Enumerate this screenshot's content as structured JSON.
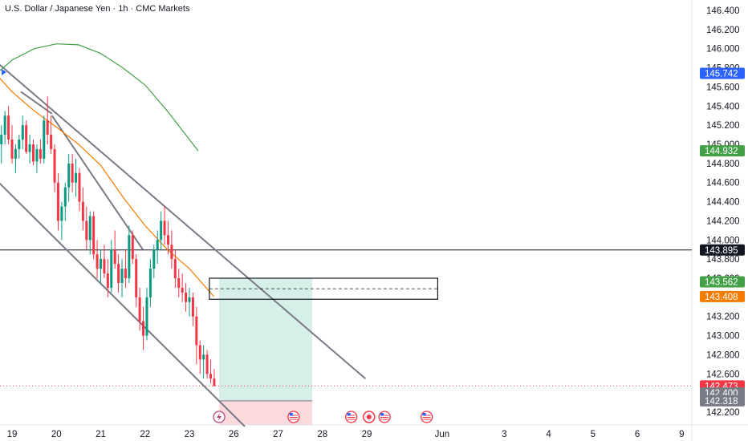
{
  "title": "U.S. Dollar / Japanese Yen · 1h · CMC Markets",
  "chart_data": {
    "type": "candlestick",
    "ylim": [
      142.09,
      146.47
    ],
    "y_ticks": [
      146.4,
      146.2,
      146.0,
      145.8,
      145.6,
      145.4,
      145.2,
      145.0,
      144.8,
      144.6,
      144.4,
      144.2,
      144.0,
      143.8,
      143.6,
      143.4,
      143.2,
      143.0,
      142.8,
      142.6,
      142.4,
      142.2
    ],
    "y_tick_labels": [
      "146.400",
      "146.200",
      "146.000",
      "145.800",
      "145.600",
      "145.400",
      "145.200",
      "145.000",
      "144.800",
      "144.600",
      "144.400",
      "144.200",
      "144.000",
      "143.800",
      "143.600",
      "143.400",
      "143.200",
      "143.000",
      "142.800",
      "142.600",
      "142.400",
      "142.200"
    ],
    "x_ticks": [
      {
        "label": "19",
        "x": 19
      },
      {
        "label": "20",
        "x": 20
      },
      {
        "label": "21",
        "x": 21
      },
      {
        "label": "22",
        "x": 22
      },
      {
        "label": "23",
        "x": 23
      },
      {
        "label": "26",
        "x": 24
      },
      {
        "label": "27",
        "x": 25
      },
      {
        "label": "28",
        "x": 26
      },
      {
        "label": "29",
        "x": 27
      },
      {
        "label": "Jun",
        "x": 28.7
      },
      {
        "label": "3",
        "x": 30.1
      },
      {
        "label": "4",
        "x": 31.1
      },
      {
        "label": "5",
        "x": 32.1
      },
      {
        "label": "6",
        "x": 33.1
      },
      {
        "label": "9",
        "x": 34.1
      }
    ],
    "xlim": [
      18.55,
      34.5
    ],
    "price_labels": [
      {
        "value": 145.742,
        "label": "145.742",
        "color": "#2962ff"
      },
      {
        "value": 144.932,
        "label": "144.932",
        "color": "#43a047"
      },
      {
        "value": 143.895,
        "label": "143.895",
        "color": "#131722"
      },
      {
        "value": 143.562,
        "label": "143.562",
        "color": "#43a047"
      },
      {
        "value": 143.408,
        "label": "143.408",
        "color": "#f57c00"
      },
      {
        "value": 142.473,
        "label": "142.473",
        "color": "#f23645"
      },
      {
        "value": 142.4,
        "label": "142.400",
        "color": "#787b86"
      },
      {
        "value": 142.318,
        "label": "142.318",
        "color": "#787b86"
      }
    ],
    "horizontal_line": {
      "value": 143.895,
      "color": "#131722"
    },
    "current_price_line": {
      "value": 142.473,
      "color": "#f23645"
    },
    "position": {
      "type": "long",
      "x_start": 23.67,
      "x_end": 25.77,
      "entry": 142.318,
      "target": 143.6,
      "stop": 142.09,
      "profit_color": "#d6efe9",
      "loss_color": "#fadadd"
    },
    "zone_box": {
      "x_start": 23.45,
      "x_end": 28.6,
      "top": 143.6,
      "bottom": 143.38,
      "mid": 143.49
    },
    "channel_lines": [
      {
        "points": [
          [
            18.55,
            145.9
          ],
          [
            26.97,
            142.55
          ]
        ],
        "color": "#787b86"
      },
      {
        "points": [
          [
            18.55,
            144.67
          ],
          [
            24.25,
            142.05
          ]
        ],
        "color": "#787b86"
      },
      {
        "points": [
          [
            19.2,
            145.55
          ],
          [
            19.9,
            145.32
          ]
        ],
        "color": "#787b86"
      },
      {
        "points": [
          [
            19.9,
            145.3
          ],
          [
            21.95,
            143.9
          ]
        ],
        "color": "#787b86"
      }
    ],
    "series": [
      {
        "name": "",
        "color": "#43a047",
        "points": [
          [
            18.55,
            145.7
          ],
          [
            19.0,
            145.88
          ],
          [
            19.5,
            146.0
          ],
          [
            20.0,
            146.05
          ],
          [
            20.5,
            146.04
          ],
          [
            21.0,
            145.95
          ],
          [
            21.5,
            145.8
          ],
          [
            22.0,
            145.62
          ],
          [
            22.5,
            145.35
          ],
          [
            23.2,
            144.93
          ]
        ]
      },
      {
        "name": "",
        "color": "#f57c00",
        "points": [
          [
            18.55,
            145.78
          ],
          [
            19.0,
            145.55
          ],
          [
            19.5,
            145.35
          ],
          [
            20.0,
            145.18
          ],
          [
            20.5,
            145.0
          ],
          [
            21.0,
            144.78
          ],
          [
            21.5,
            144.45
          ],
          [
            22.0,
            144.15
          ],
          [
            22.5,
            143.9
          ],
          [
            23.0,
            143.7
          ],
          [
            23.55,
            143.41
          ]
        ]
      }
    ],
    "candles": [
      [
        18.6,
        145.5,
        145.55,
        145.2,
        145.3
      ],
      [
        18.68,
        145.3,
        145.45,
        144.9,
        145.0
      ],
      [
        18.76,
        145.0,
        145.2,
        144.8,
        145.1
      ],
      [
        18.84,
        145.1,
        145.35,
        145.0,
        145.3
      ],
      [
        18.92,
        145.3,
        145.4,
        145.0,
        145.05
      ],
      [
        19.0,
        145.05,
        145.2,
        144.8,
        144.85
      ],
      [
        19.08,
        144.85,
        145.0,
        144.7,
        144.95
      ],
      [
        19.16,
        144.95,
        145.1,
        144.85,
        145.05
      ],
      [
        19.24,
        145.05,
        145.3,
        144.95,
        145.2
      ],
      [
        19.32,
        145.2,
        145.25,
        144.9,
        144.92
      ],
      [
        19.4,
        144.92,
        145.1,
        144.8,
        145.0
      ],
      [
        19.48,
        145.0,
        145.05,
        144.78,
        144.82
      ],
      [
        19.56,
        144.82,
        145.0,
        144.7,
        144.95
      ],
      [
        19.64,
        144.95,
        145.05,
        144.8,
        144.85
      ],
      [
        19.72,
        144.85,
        145.3,
        144.8,
        145.25
      ],
      [
        19.8,
        145.25,
        145.5,
        145.0,
        145.1
      ],
      [
        19.88,
        145.1,
        145.3,
        144.9,
        144.95
      ],
      [
        19.96,
        144.95,
        145.0,
        144.5,
        144.6
      ],
      [
        20.04,
        144.6,
        144.7,
        144.1,
        144.2
      ],
      [
        20.12,
        144.2,
        144.4,
        144.0,
        144.35
      ],
      [
        20.2,
        144.35,
        144.6,
        144.2,
        144.55
      ],
      [
        20.28,
        144.55,
        144.9,
        144.4,
        144.8
      ],
      [
        20.36,
        144.8,
        144.9,
        144.5,
        144.6
      ],
      [
        20.44,
        144.6,
        144.85,
        144.45,
        144.7
      ],
      [
        20.52,
        144.7,
        144.75,
        144.3,
        144.4
      ],
      [
        20.6,
        144.4,
        144.55,
        144.1,
        144.2
      ],
      [
        20.68,
        144.2,
        144.35,
        143.9,
        144.0
      ],
      [
        20.76,
        144.0,
        144.3,
        143.85,
        144.25
      ],
      [
        20.84,
        144.25,
        144.3,
        143.8,
        143.85
      ],
      [
        20.92,
        143.85,
        144.0,
        143.6,
        143.7
      ],
      [
        21.0,
        143.7,
        143.9,
        143.55,
        143.8
      ],
      [
        21.08,
        143.8,
        143.95,
        143.6,
        143.65
      ],
      [
        21.16,
        143.65,
        143.8,
        143.4,
        143.5
      ],
      [
        21.24,
        143.5,
        144.0,
        143.45,
        143.9
      ],
      [
        21.32,
        143.9,
        144.1,
        143.7,
        143.75
      ],
      [
        21.4,
        143.75,
        143.85,
        143.45,
        143.55
      ],
      [
        21.48,
        143.55,
        143.8,
        143.4,
        143.7
      ],
      [
        21.56,
        143.7,
        143.9,
        143.5,
        143.6
      ],
      [
        21.64,
        143.6,
        144.15,
        143.55,
        144.05
      ],
      [
        21.72,
        144.05,
        144.1,
        143.75,
        143.8
      ],
      [
        21.8,
        143.8,
        143.85,
        143.3,
        143.4
      ],
      [
        21.88,
        143.4,
        143.5,
        143.05,
        143.15
      ],
      [
        21.96,
        143.15,
        143.3,
        142.85,
        143.0
      ],
      [
        22.04,
        143.0,
        143.5,
        142.95,
        143.4
      ],
      [
        22.12,
        143.4,
        143.8,
        143.3,
        143.7
      ],
      [
        22.2,
        143.7,
        143.95,
        143.6,
        143.9
      ],
      [
        22.28,
        143.9,
        144.1,
        143.75,
        144.0
      ],
      [
        22.36,
        144.0,
        144.3,
        143.9,
        144.2
      ],
      [
        22.44,
        144.2,
        144.35,
        143.95,
        144.05
      ],
      [
        22.52,
        144.05,
        144.2,
        143.85,
        143.95
      ],
      [
        22.6,
        143.95,
        144.1,
        143.7,
        143.8
      ],
      [
        22.68,
        143.8,
        143.9,
        143.5,
        143.6
      ],
      [
        22.76,
        143.6,
        143.7,
        143.4,
        143.5
      ],
      [
        22.84,
        143.5,
        143.65,
        143.35,
        143.45
      ],
      [
        22.92,
        143.45,
        143.55,
        143.25,
        143.35
      ],
      [
        23.0,
        143.35,
        143.5,
        143.2,
        143.4
      ],
      [
        23.08,
        143.4,
        143.45,
        143.1,
        143.2
      ],
      [
        23.16,
        143.2,
        143.3,
        142.7,
        142.9
      ],
      [
        23.24,
        142.9,
        142.95,
        142.6,
        142.75
      ],
      [
        23.32,
        142.75,
        142.9,
        142.55,
        142.8
      ],
      [
        23.4,
        142.8,
        142.85,
        142.55,
        142.6
      ],
      [
        23.48,
        142.6,
        142.75,
        142.5,
        142.55
      ],
      [
        23.56,
        142.55,
        142.65,
        142.47,
        142.473
      ]
    ],
    "event_icons": [
      {
        "x": 23.67,
        "type": "lightning"
      },
      {
        "x": 25.35,
        "type": "us-flag"
      },
      {
        "x": 26.65,
        "type": "us-flag"
      },
      {
        "x": 27.05,
        "type": "red-dot"
      },
      {
        "x": 27.4,
        "type": "us-flag"
      },
      {
        "x": 28.35,
        "type": "us-flag"
      }
    ]
  }
}
